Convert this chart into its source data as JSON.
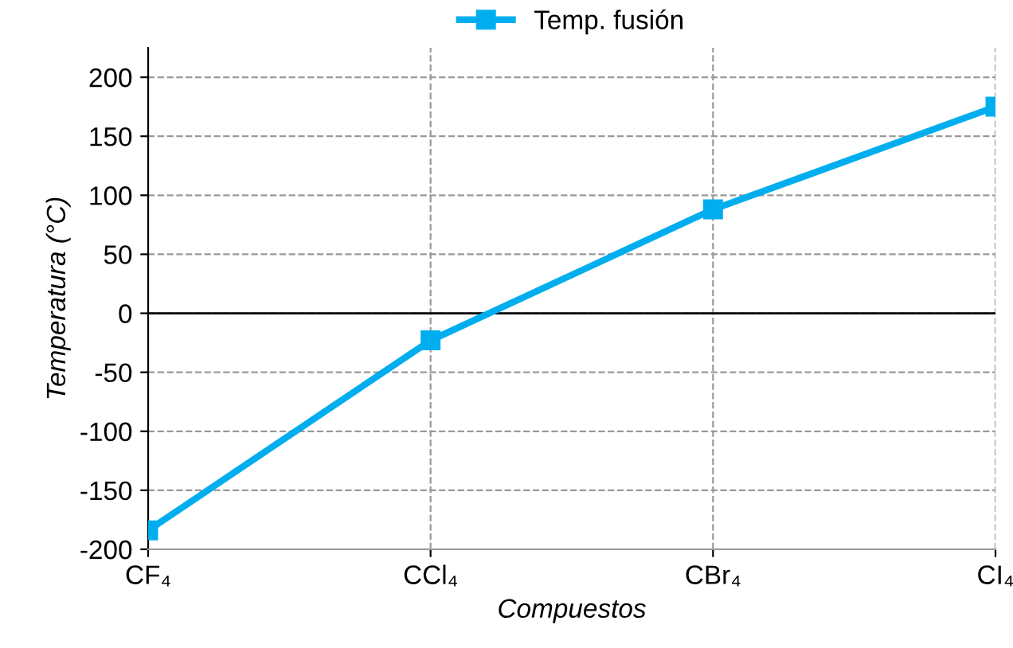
{
  "chart_data": {
    "type": "line",
    "xlabel": "Compuestos",
    "ylabel": "Temperatura (°C)",
    "categories": [
      "CF₄",
      "CCl₄",
      "CBr₄",
      "CI₄"
    ],
    "series": [
      {
        "name": "Temp. fusión",
        "color": "#00aeef",
        "values": [
          -184,
          -23,
          88,
          175
        ]
      }
    ],
    "ylim": [
      -200,
      225
    ],
    "yticks": [
      -200,
      -150,
      -100,
      -50,
      0,
      50,
      100,
      150,
      200
    ],
    "ref_lines": [
      {
        "axis": "y",
        "value": 0,
        "color": "#000000"
      }
    ],
    "grid": true,
    "legend": "top",
    "marker": "square",
    "line_style": "solid"
  }
}
